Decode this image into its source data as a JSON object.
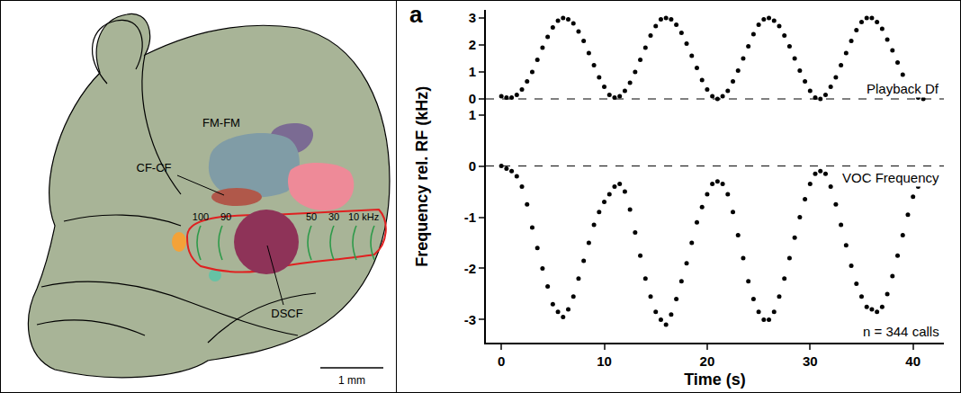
{
  "diagram": {
    "labels": {
      "fm_fm": "FM-FM",
      "cf_cf": "CF-CF",
      "dscf": "DSCF"
    },
    "frequency_labels": [
      "100",
      "90",
      "50",
      "30",
      "10 kHz"
    ],
    "scale_bar": "1 mm"
  },
  "panel": "a",
  "chart_data": [
    {
      "type": "scatter",
      "color": "#000000",
      "marker": "circle",
      "annotations": [
        "Playback Df"
      ],
      "reference_line": {
        "y": 0,
        "line_style": "dashed"
      },
      "tick_labels": "y",
      "xlim": [
        -1.5,
        43
      ],
      "ylim": [
        -0.4,
        3.3
      ],
      "yticks": [
        0,
        1,
        2,
        3
      ],
      "x": [
        0,
        0.5,
        1,
        1.5,
        2,
        2.5,
        3,
        3.5,
        4,
        4.5,
        5,
        5.5,
        6,
        6.5,
        7,
        7.5,
        8,
        8.5,
        9,
        9.5,
        10,
        10.5,
        11,
        11.5,
        12,
        12.5,
        13,
        13.5,
        14,
        14.5,
        15,
        15.5,
        16,
        16.5,
        17,
        17.5,
        18,
        18.5,
        19,
        19.5,
        20,
        20.5,
        21,
        21.5,
        22,
        22.5,
        23,
        23.5,
        24,
        24.5,
        25,
        25.5,
        26,
        26.5,
        27,
        27.5,
        28,
        28.5,
        29,
        29.5,
        30,
        30.5,
        31,
        31.5,
        32,
        32.5,
        33,
        33.5,
        34,
        34.5,
        35,
        35.5,
        36,
        36.5,
        37,
        37.5,
        38,
        38.5,
        39,
        39.5,
        40,
        40.5,
        41
      ],
      "values": [
        0.1,
        0.05,
        0.05,
        0.15,
        0.35,
        0.65,
        1.0,
        1.45,
        1.9,
        2.3,
        2.65,
        2.9,
        3.0,
        2.95,
        2.8,
        2.5,
        2.15,
        1.7,
        1.25,
        0.8,
        0.45,
        0.15,
        0.05,
        0.1,
        0.3,
        0.6,
        1.0,
        1.45,
        1.9,
        2.35,
        2.7,
        2.95,
        3.0,
        2.95,
        2.75,
        2.45,
        2.05,
        1.6,
        1.15,
        0.7,
        0.35,
        0.1,
        0.0,
        0.1,
        0.3,
        0.65,
        1.05,
        1.5,
        1.95,
        2.4,
        2.75,
        2.95,
        3.0,
        2.9,
        2.7,
        2.35,
        1.95,
        1.5,
        1.05,
        0.65,
        0.3,
        0.05,
        0.0,
        0.15,
        0.45,
        0.8,
        1.25,
        1.7,
        2.15,
        2.55,
        2.85,
        3.0,
        3.0,
        2.85,
        2.6,
        2.2,
        1.8,
        1.35,
        0.9,
        0.5,
        0.2,
        0.05,
        0.0
      ]
    },
    {
      "type": "scatter",
      "color": "#000000",
      "marker": "circle",
      "annotations": [
        "VOC Frequency",
        "n = 344 calls"
      ],
      "reference_line": {
        "y": 0,
        "line_style": "dashed"
      },
      "xlabel": "Time (s)",
      "ylabel": "Frequency rel. RF (kHz)",
      "xlim": [
        -1.5,
        43
      ],
      "xticks": [
        0,
        10,
        20,
        30,
        40
      ],
      "ylim": [
        -3.45,
        1.1
      ],
      "yticks": [
        -3,
        -2,
        -1,
        0,
        1
      ],
      "x": [
        0,
        0.5,
        1,
        1.5,
        2,
        2.5,
        3,
        3.5,
        4,
        4.5,
        5,
        5.5,
        6,
        6.5,
        7,
        7.5,
        8,
        8.5,
        9,
        9.5,
        10,
        10.5,
        11,
        11.5,
        12,
        12.5,
        13,
        13.5,
        14,
        14.5,
        15,
        15.5,
        16,
        16.5,
        17,
        17.5,
        18,
        18.5,
        19,
        19.5,
        20,
        20.5,
        21,
        21.5,
        22,
        22.5,
        23,
        23.5,
        24,
        24.5,
        25,
        25.5,
        26,
        26.5,
        27,
        27.5,
        28,
        28.5,
        29,
        29.5,
        30,
        30.5,
        31,
        31.5,
        32,
        32.5,
        33,
        33.5,
        34,
        34.5,
        35,
        35.5,
        36,
        36.5,
        37,
        37.5,
        38,
        38.5,
        39,
        39.5,
        40,
        40.5,
        41
      ],
      "values": [
        0.0,
        -0.05,
        -0.1,
        -0.2,
        -0.4,
        -0.75,
        -1.2,
        -1.6,
        -2.0,
        -2.35,
        -2.7,
        -2.85,
        -2.95,
        -2.8,
        -2.55,
        -2.2,
        -1.85,
        -1.5,
        -1.15,
        -0.9,
        -0.7,
        -0.55,
        -0.4,
        -0.35,
        -0.5,
        -0.85,
        -1.3,
        -1.75,
        -2.2,
        -2.55,
        -2.85,
        -3.0,
        -3.1,
        -2.9,
        -2.6,
        -2.25,
        -1.9,
        -1.5,
        -1.1,
        -0.8,
        -0.55,
        -0.35,
        -0.3,
        -0.35,
        -0.55,
        -0.9,
        -1.35,
        -1.8,
        -2.25,
        -2.6,
        -2.85,
        -3.0,
        -3.0,
        -2.85,
        -2.55,
        -2.2,
        -1.8,
        -1.4,
        -1.0,
        -0.65,
        -0.35,
        -0.15,
        -0.1,
        -0.15,
        -0.4,
        -0.75,
        -1.15,
        -1.55,
        -1.95,
        -2.3,
        -2.55,
        -2.75,
        -2.8,
        -2.85,
        -2.75,
        -2.5,
        -2.15,
        -1.75,
        -1.35,
        -0.95,
        -0.6,
        -0.4,
        -0.3
      ]
    }
  ]
}
